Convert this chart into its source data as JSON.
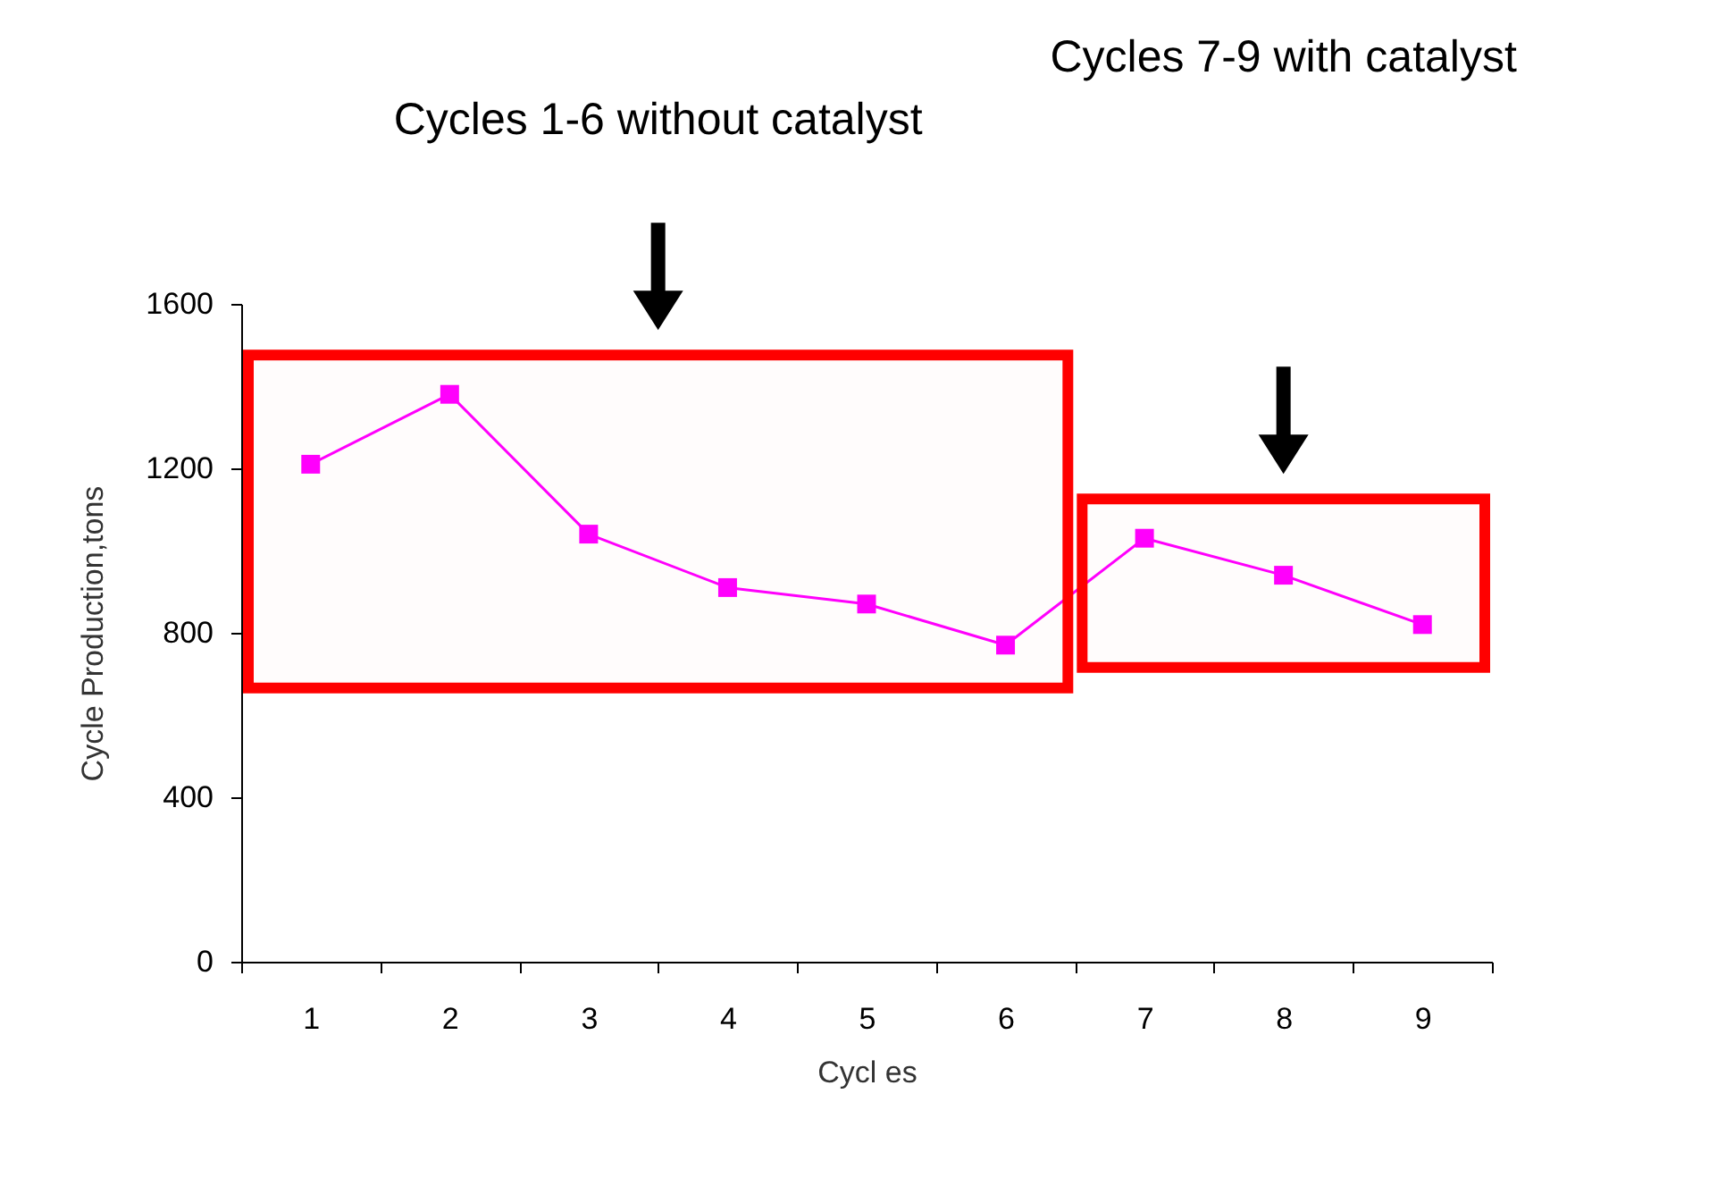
{
  "chart_data": {
    "type": "line",
    "xlabel": "Cycl es",
    "ylabel": "Cycle Production,tons",
    "categories": [
      "1",
      "2",
      "3",
      "4",
      "5",
      "6",
      "7",
      "8",
      "9"
    ],
    "series": [
      {
        "color": "#ff00ff",
        "values": [
          1210,
          1380,
          1040,
          910,
          870,
          770,
          1030,
          940,
          820
        ]
      }
    ],
    "ylim": [
      0,
      1600
    ],
    "yticks": [
      0,
      400,
      800,
      1200,
      1600
    ],
    "grid": false,
    "marker": "square",
    "line_style": "solid",
    "annotations": [
      "Cycles 1-6 without catalyst",
      "Cycles 7-9 with catalyst"
    ],
    "bands": [
      {
        "axis": "x",
        "from": "1",
        "to": "6",
        "color": "#ff0000"
      },
      {
        "axis": "x",
        "from": "7",
        "to": "9",
        "color": "#ff0000"
      }
    ]
  }
}
